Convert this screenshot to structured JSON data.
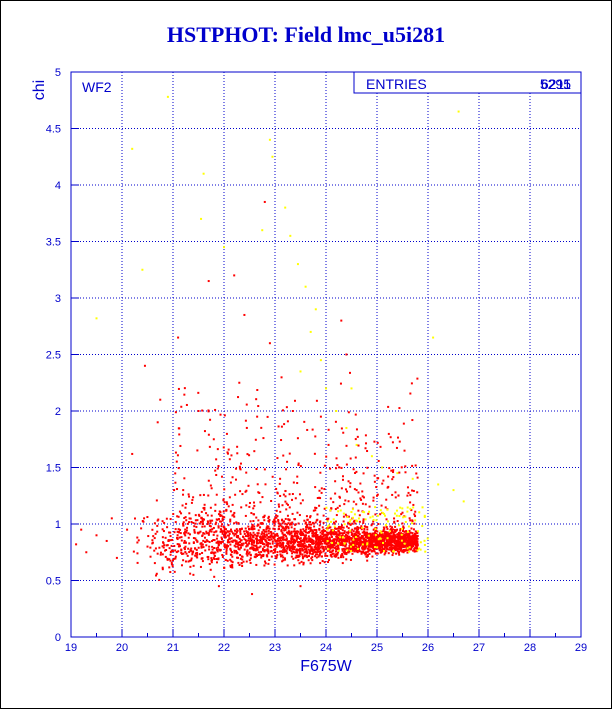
{
  "title": "HSTPHOT: Field lmc_u5i281",
  "colors": {
    "text": "#0000cc",
    "grid": "#0000cc",
    "frame": "#000000",
    "good": "#ff0000",
    "flagged": "#ffff00"
  },
  "chart_data": {
    "type": "scatter",
    "title": "HSTPHOT: Field lmc_u5i281",
    "xlabel": "F675W",
    "ylabel": "chi",
    "xlim": [
      19,
      29
    ],
    "ylim": [
      0,
      5
    ],
    "x_ticks": [
      "19",
      "20",
      "21",
      "22",
      "23",
      "24",
      "25",
      "26",
      "27",
      "28",
      "29"
    ],
    "y_ticks": [
      "0",
      "0.5",
      "1",
      "1.5",
      "2",
      "2.5",
      "3",
      "3.5",
      "4",
      "4.5",
      "5"
    ],
    "grid": true,
    "annotation": "WF2",
    "stats_box": {
      "label": "ENTRIES",
      "value": "5295"
    },
    "overprinted_value": "6211",
    "series": [
      {
        "color": "#ff0000",
        "points": [
          [
            19.1,
            0.82
          ],
          [
            19.2,
            0.95
          ],
          [
            19.3,
            0.75
          ],
          [
            19.5,
            0.9
          ],
          [
            19.7,
            0.85
          ],
          [
            19.8,
            1.05
          ],
          [
            19.9,
            0.7
          ],
          [
            20.1,
            0.95
          ],
          [
            20.2,
            1.62
          ],
          [
            20.3,
            0.88
          ],
          [
            20.45,
            2.4
          ],
          [
            20.5,
            0.8
          ],
          [
            20.7,
            1.9
          ],
          [
            20.75,
            2.1
          ],
          [
            20.8,
            0.6
          ],
          [
            21.1,
            2.65
          ],
          [
            21.2,
            1.3
          ],
          [
            21.4,
            0.55
          ],
          [
            21.5,
            2.0
          ],
          [
            21.7,
            3.15
          ],
          [
            21.8,
            1.75
          ],
          [
            21.9,
            0.45
          ],
          [
            22.2,
            3.2
          ],
          [
            22.3,
            2.25
          ],
          [
            22.4,
            2.85
          ],
          [
            22.55,
            0.38
          ],
          [
            22.65,
            1.95
          ],
          [
            22.8,
            3.85
          ],
          [
            22.9,
            2.6
          ],
          [
            23.1,
            1.4
          ],
          [
            23.35,
            2.0
          ],
          [
            23.5,
            0.45
          ],
          [
            23.9,
            1.95
          ],
          [
            24.05,
            1.7
          ],
          [
            24.3,
            2.8
          ],
          [
            24.4,
            2.5
          ],
          [
            24.6,
            1.3
          ],
          [
            25.0,
            1.25
          ],
          [
            25.5,
            1.1
          ],
          [
            25.8,
            0.78
          ]
        ]
      },
      {
        "color": "#ffff00",
        "points": [
          [
            19.5,
            2.82
          ],
          [
            20.2,
            4.32
          ],
          [
            20.4,
            3.25
          ],
          [
            20.9,
            4.78
          ],
          [
            21.6,
            4.1
          ],
          [
            21.55,
            3.7
          ],
          [
            22.0,
            3.45
          ],
          [
            22.9,
            4.4
          ],
          [
            22.95,
            4.25
          ],
          [
            22.75,
            3.6
          ],
          [
            23.2,
            3.8
          ],
          [
            23.3,
            3.55
          ],
          [
            23.45,
            3.3
          ],
          [
            23.6,
            3.1
          ],
          [
            23.8,
            2.9
          ],
          [
            23.7,
            2.7
          ],
          [
            23.5,
            2.35
          ],
          [
            24.0,
            2.2
          ],
          [
            24.2,
            2.0
          ],
          [
            24.4,
            1.85
          ],
          [
            24.6,
            1.7
          ],
          [
            24.9,
            1.6
          ],
          [
            25.1,
            1.5
          ],
          [
            25.4,
            1.45
          ],
          [
            25.7,
            1.4
          ],
          [
            26.1,
            2.65
          ],
          [
            26.2,
            1.35
          ],
          [
            26.5,
            1.3
          ],
          [
            26.6,
            4.65
          ],
          [
            26.7,
            1.2
          ],
          [
            24.5,
            2.2
          ],
          [
            23.9,
            2.45
          ]
        ]
      }
    ]
  }
}
